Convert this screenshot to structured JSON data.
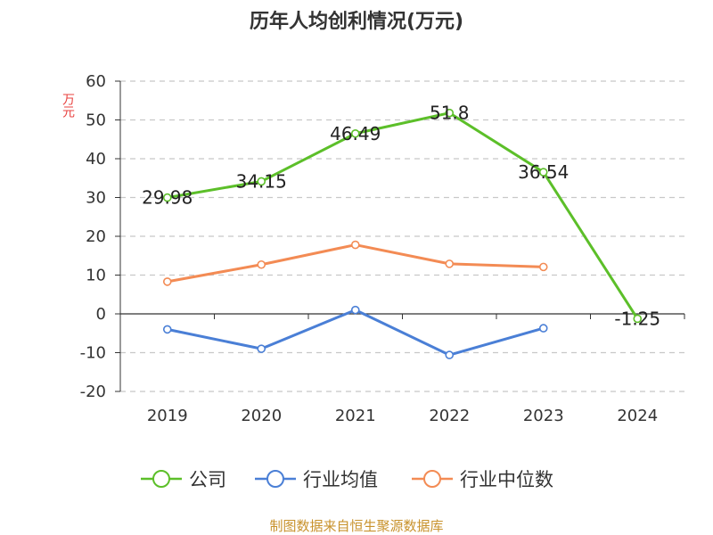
{
  "title": "历年人均创利情况(万元)",
  "footer": "制图数据来自恒生聚源数据库",
  "chart_data": {
    "type": "line",
    "title": "历年人均创利情况(万元)",
    "ylabel": "万元",
    "xlabel": "",
    "categories": [
      "2019",
      "2020",
      "2021",
      "2022",
      "2023",
      "2024"
    ],
    "ylim": [
      -20,
      60
    ],
    "yticks": [
      -20,
      -10,
      0,
      10,
      20,
      30,
      40,
      50,
      60
    ],
    "grid": true,
    "legend_position": "bottom",
    "series": [
      {
        "name": "公司",
        "color": "#5cbf29",
        "values": [
          29.98,
          34.15,
          46.49,
          51.8,
          36.54,
          -1.25
        ],
        "labels": [
          "29.98",
          "34.15",
          "46.49",
          "51.8",
          "36.54",
          "-1.25"
        ]
      },
      {
        "name": "行业均值",
        "color": "#4a7fd6",
        "values": [
          -4.0,
          -9.0,
          1.0,
          -10.6,
          -3.7,
          null
        ]
      },
      {
        "name": "行业中位数",
        "color": "#f38b54",
        "values": [
          8.3,
          12.7,
          17.8,
          12.9,
          12.1,
          null
        ]
      }
    ]
  }
}
